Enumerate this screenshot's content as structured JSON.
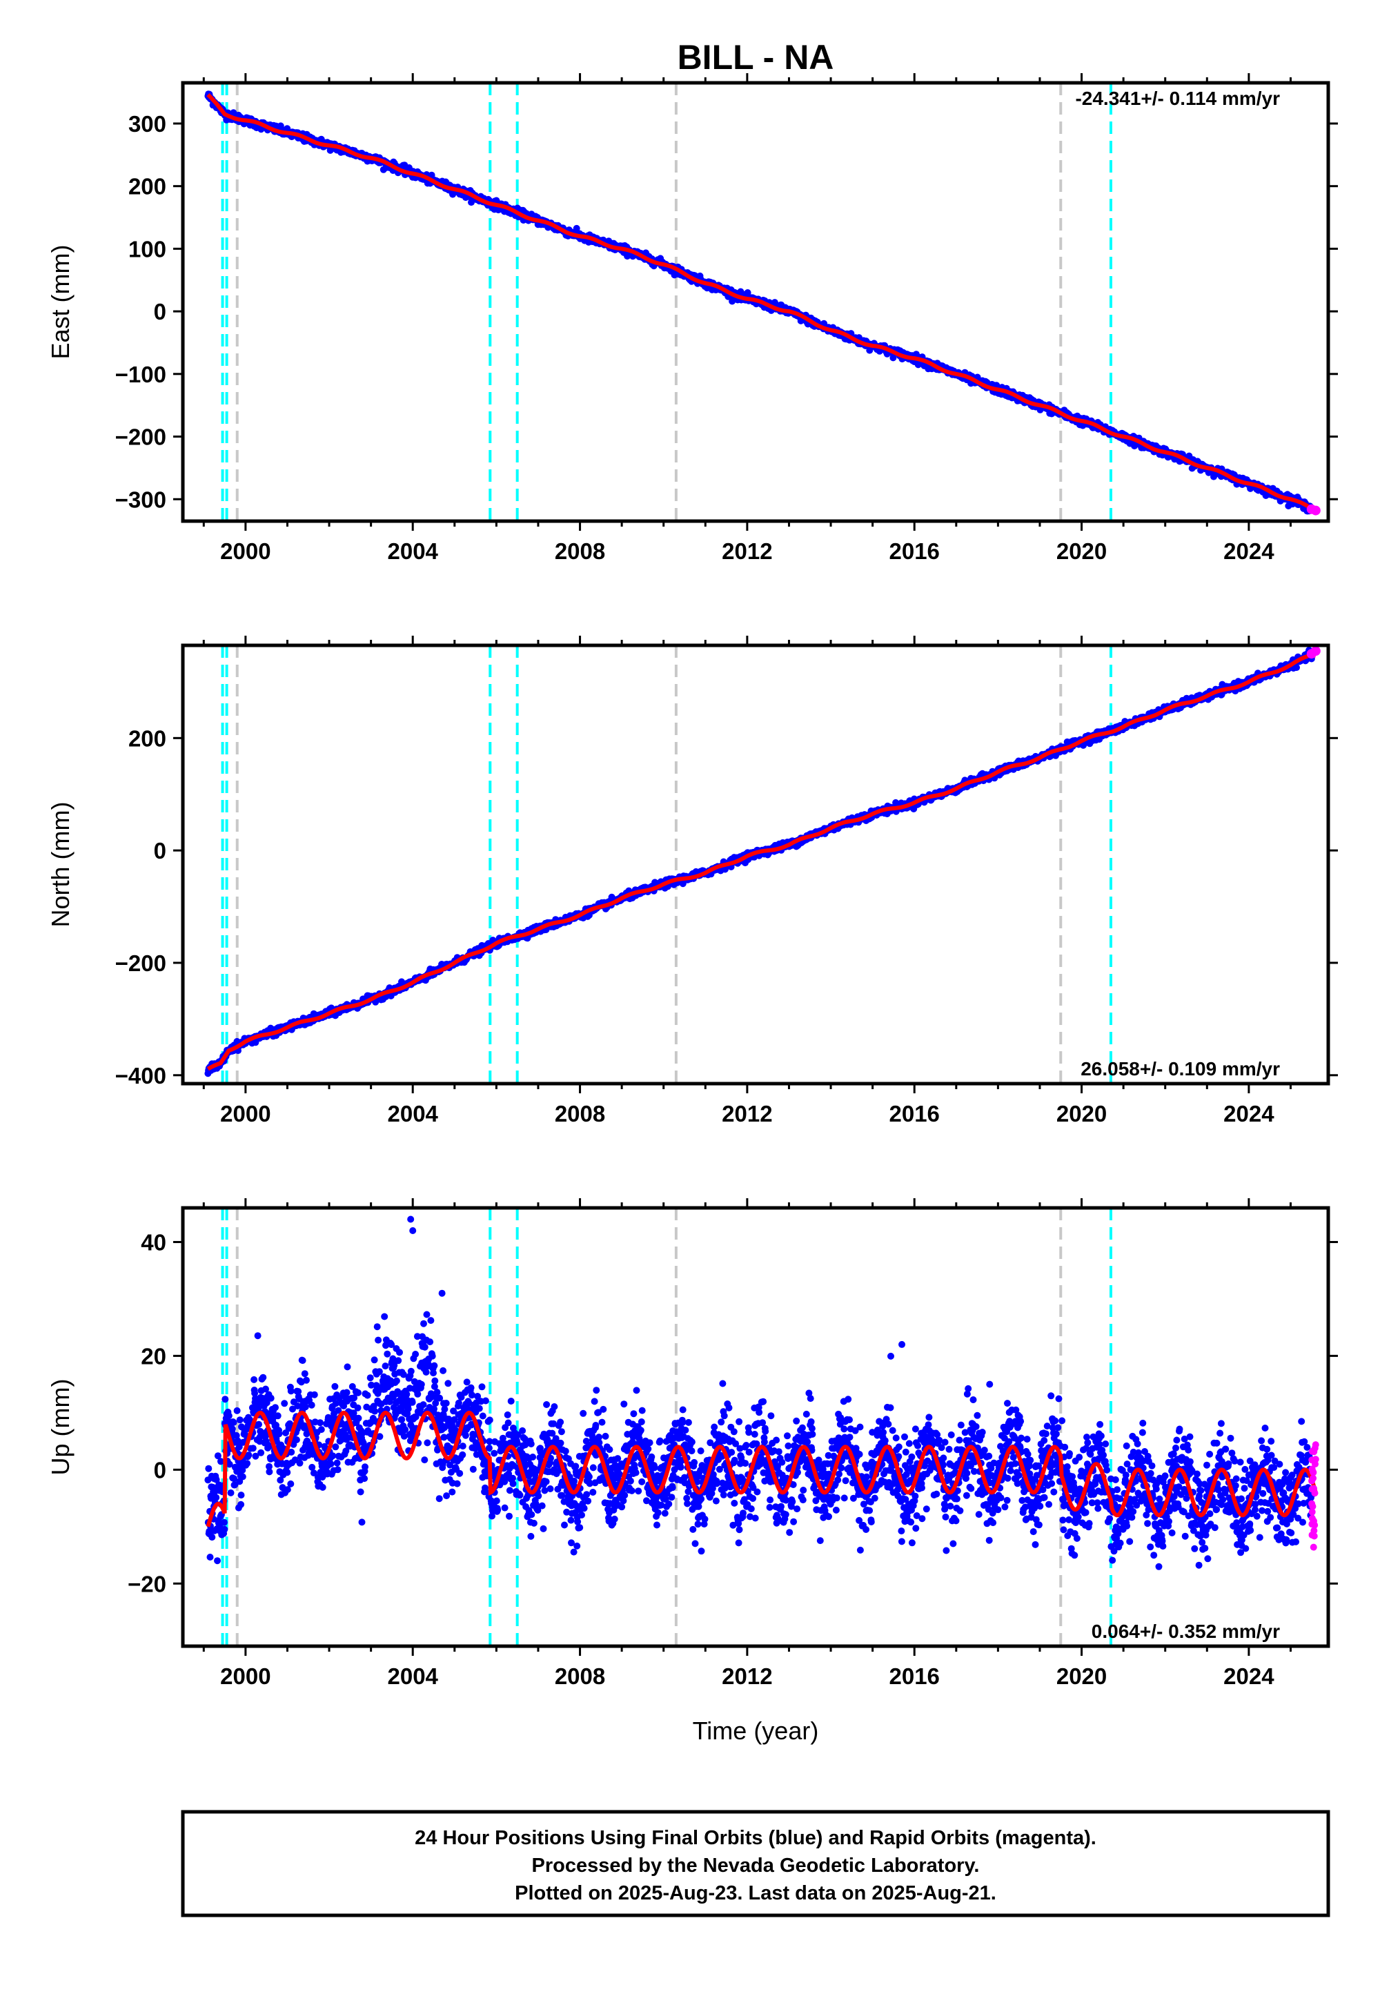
{
  "title": "BILL - NA",
  "xlabel": "Time (year)",
  "colors": {
    "final_orbit_points": "#0000ff",
    "rapid_orbit_points": "#ff00ff",
    "model_fit": "#ff0000",
    "antenna_change_lines": "#00ffff",
    "other_event_lines": "#c8c8c8"
  },
  "chart_data": [
    {
      "type": "scatter",
      "component": "east",
      "ylabel": "East (mm)",
      "xlim": [
        1998.5,
        2025.9
      ],
      "ylim": [
        -335,
        365
      ],
      "yticks": [
        -300,
        -200,
        -100,
        0,
        100,
        200,
        300
      ],
      "xticks": [
        2000,
        2004,
        2008,
        2012,
        2016,
        2020,
        2024
      ],
      "rate_label": "-24.341+/- 0.114 mm/yr",
      "rate_position": "top-right",
      "series": [
        {
          "name": "Final Orbits (blue)",
          "x": [
            1999.1,
            1999.5,
            2000,
            2001,
            2002,
            2003,
            2004,
            2005,
            2006,
            2007,
            2008,
            2009,
            2010,
            2011,
            2012,
            2013,
            2014,
            2015,
            2016,
            2017,
            2018,
            2019,
            2020,
            2021,
            2022,
            2023,
            2024,
            2025,
            2025.5
          ],
          "y": [
            345,
            315,
            305,
            285,
            265,
            245,
            220,
            195,
            170,
            145,
            120,
            100,
            75,
            45,
            20,
            0,
            -30,
            -55,
            -75,
            -100,
            -125,
            -150,
            -175,
            -200,
            -225,
            -250,
            -275,
            -300,
            -315
          ]
        },
        {
          "name": "Rapid Orbits (magenta)",
          "x": [
            2025.5,
            2025.6
          ],
          "y": [
            -316,
            -318
          ]
        },
        {
          "name": "Model fit",
          "x": [
            1999.1,
            1999.45,
            1999.5,
            2025.6
          ],
          "y": [
            345,
            330,
            315,
            -318
          ]
        }
      ],
      "event_lines": [
        {
          "x": 1999.45,
          "kind": "cyan"
        },
        {
          "x": 1999.55,
          "kind": "cyan"
        },
        {
          "x": 1999.8,
          "kind": "gray"
        },
        {
          "x": 2005.85,
          "kind": "cyan"
        },
        {
          "x": 2006.5,
          "kind": "cyan"
        },
        {
          "x": 2010.3,
          "kind": "gray"
        },
        {
          "x": 2019.5,
          "kind": "gray"
        },
        {
          "x": 2020.7,
          "kind": "cyan"
        }
      ]
    },
    {
      "type": "scatter",
      "component": "north",
      "ylabel": "North (mm)",
      "xlim": [
        1998.5,
        2025.9
      ],
      "ylim": [
        -415,
        365
      ],
      "yticks": [
        -400,
        -200,
        0,
        200
      ],
      "xticks": [
        2000,
        2004,
        2008,
        2012,
        2016,
        2020,
        2024
      ],
      "rate_label": "26.058+/- 0.109 mm/yr",
      "rate_position": "bottom-right",
      "series": [
        {
          "name": "Final Orbits (blue)",
          "x": [
            1999.1,
            1999.4,
            1999.6,
            2000,
            2001,
            2002,
            2003,
            2004,
            2005,
            2006,
            2007,
            2008,
            2009,
            2010,
            2011,
            2012,
            2013,
            2014,
            2015,
            2016,
            2017,
            2018,
            2019,
            2020,
            2021,
            2022,
            2023,
            2024,
            2025,
            2025.5
          ],
          "y": [
            -390,
            -380,
            -355,
            -340,
            -315,
            -290,
            -265,
            -235,
            -200,
            -165,
            -140,
            -115,
            -85,
            -60,
            -40,
            -10,
            10,
            40,
            65,
            85,
            110,
            140,
            165,
            195,
            220,
            250,
            275,
            300,
            330,
            348
          ]
        },
        {
          "name": "Rapid Orbits (magenta)",
          "x": [
            2025.5,
            2025.6
          ],
          "y": [
            350,
            355
          ]
        },
        {
          "name": "Model fit",
          "x": [
            1999.1,
            1999.45,
            1999.5,
            2025.6
          ],
          "y": [
            -390,
            -380,
            -360,
            355
          ]
        }
      ],
      "event_lines": [
        {
          "x": 1999.45,
          "kind": "cyan"
        },
        {
          "x": 1999.55,
          "kind": "cyan"
        },
        {
          "x": 1999.8,
          "kind": "gray"
        },
        {
          "x": 2005.85,
          "kind": "cyan"
        },
        {
          "x": 2006.5,
          "kind": "cyan"
        },
        {
          "x": 2010.3,
          "kind": "gray"
        },
        {
          "x": 2019.5,
          "kind": "gray"
        },
        {
          "x": 2020.7,
          "kind": "cyan"
        }
      ]
    },
    {
      "type": "scatter",
      "component": "up",
      "ylabel": "Up (mm)",
      "xlim": [
        1998.5,
        2025.9
      ],
      "ylim": [
        -31,
        46
      ],
      "yticks": [
        -20,
        0,
        20,
        40
      ],
      "xticks": [
        2000,
        2004,
        2008,
        2012,
        2016,
        2020,
        2024
      ],
      "rate_label": "0.064+/- 0.352 mm/yr",
      "rate_position": "bottom-right",
      "seasonal_model": {
        "amplitude_mm": 4,
        "segments": [
          {
            "x": [
              1999.1,
              1999.5
            ],
            "offset": -10
          },
          {
            "x": [
              1999.5,
              2005.85
            ],
            "offset": 6
          },
          {
            "x": [
              2005.85,
              2019.5
            ],
            "offset": 0
          },
          {
            "x": [
              2019.5,
              2020.7
            ],
            "offset": -3
          },
          {
            "x": [
              2020.7,
              2025.6
            ],
            "offset": -4
          }
        ]
      },
      "scatter_envelope": {
        "spread_mm": 7,
        "outliers": [
          {
            "x": 2003.95,
            "y": 44
          },
          {
            "x": 2004.0,
            "y": 42
          },
          {
            "x": 2004.7,
            "y": 31
          },
          {
            "x": 2015.7,
            "y": 22
          },
          {
            "x": 2017.8,
            "y": 15
          }
        ]
      },
      "series": [
        {
          "name": "Final Orbits (blue)"
        },
        {
          "name": "Rapid Orbits (magenta)",
          "x": [
            2025.5,
            2025.6
          ],
          "y_range": [
            -14,
            5
          ]
        },
        {
          "name": "Model fit"
        }
      ],
      "event_lines": [
        {
          "x": 1999.45,
          "kind": "cyan"
        },
        {
          "x": 1999.55,
          "kind": "cyan"
        },
        {
          "x": 1999.8,
          "kind": "gray"
        },
        {
          "x": 2005.85,
          "kind": "cyan"
        },
        {
          "x": 2006.5,
          "kind": "cyan"
        },
        {
          "x": 2010.3,
          "kind": "gray"
        },
        {
          "x": 2019.5,
          "kind": "gray"
        },
        {
          "x": 2020.7,
          "kind": "cyan"
        }
      ]
    }
  ],
  "footer": {
    "line1": "24 Hour Positions Using Final Orbits (blue) and Rapid Orbits (magenta).",
    "line2": "Processed by the Nevada Geodetic Laboratory.",
    "line3": "Plotted on 2025-Aug-23. Last data on 2025-Aug-21."
  }
}
